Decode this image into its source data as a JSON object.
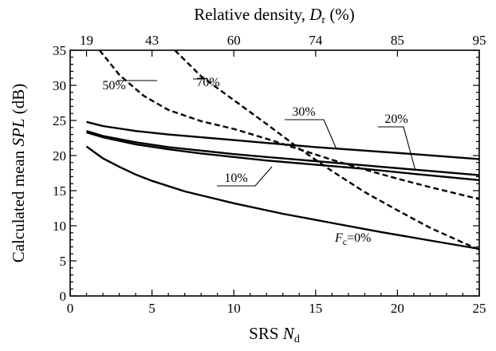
{
  "chart_data": {
    "type": "line",
    "xlabel": {
      "main": "SRS ",
      "italic": "N",
      "sub": "d"
    },
    "ylabel": {
      "main": "Calculated mean ",
      "italic": "SPL",
      "tail": " (dB)"
    },
    "top_axis_label": {
      "main": "Relative density, ",
      "italic": "D",
      "sub": "r",
      "tail": " (%)"
    },
    "xlim": [
      0,
      25
    ],
    "ylim": [
      0,
      35
    ],
    "x_ticks": [
      "0",
      "5",
      "10",
      "15",
      "20",
      "25"
    ],
    "y_ticks": [
      "0",
      "5",
      "10",
      "15",
      "20",
      "25",
      "30",
      "35"
    ],
    "top_ticks": [
      {
        "x": 1,
        "label": "19"
      },
      {
        "x": 5,
        "label": "43"
      },
      {
        "x": 10,
        "label": "60"
      },
      {
        "x": 15,
        "label": "74"
      },
      {
        "x": 20,
        "label": "85"
      },
      {
        "x": 25,
        "label": "95"
      }
    ],
    "grid": false,
    "series": [
      {
        "name": "Fc=0%",
        "style": "solid",
        "x": [
          1,
          2,
          3,
          4,
          5,
          7,
          10,
          13,
          16,
          19,
          22,
          25
        ],
        "y": [
          21.3,
          19.6,
          18.4,
          17.3,
          16.4,
          14.9,
          13.2,
          11.7,
          10.4,
          9.1,
          7.9,
          6.7
        ]
      },
      {
        "name": "10%",
        "style": "solid",
        "x": [
          1,
          2,
          4,
          6,
          8,
          10,
          12,
          15,
          18,
          21,
          25
        ],
        "y": [
          23.3,
          22.6,
          21.6,
          20.9,
          20.3,
          19.8,
          19.3,
          18.7,
          18.1,
          17.4,
          16.5
        ]
      },
      {
        "name": "20%",
        "style": "solid",
        "x": [
          1,
          2,
          4,
          6,
          8,
          10,
          12,
          15,
          18,
          21,
          25
        ],
        "y": [
          23.5,
          22.8,
          21.9,
          21.2,
          20.7,
          20.2,
          19.8,
          19.2,
          18.6,
          18.0,
          17.2
        ]
      },
      {
        "name": "30%",
        "style": "solid",
        "x": [
          1,
          2,
          4,
          6,
          8,
          10,
          12,
          15,
          18,
          21,
          25
        ],
        "y": [
          24.8,
          24.2,
          23.5,
          23.0,
          22.6,
          22.2,
          21.8,
          21.2,
          20.7,
          20.2,
          19.5
        ]
      },
      {
        "name": "50%",
        "style": "dashed",
        "x": [
          1.8,
          3,
          4.5,
          6,
          8,
          10,
          12,
          14,
          16,
          18,
          20,
          22,
          25
        ],
        "y": [
          35,
          31.5,
          28.5,
          26.5,
          24.9,
          23.8,
          22.4,
          20.9,
          19.4,
          18.0,
          16.7,
          15.5,
          13.8
        ]
      },
      {
        "name": "70%",
        "style": "dashed",
        "x": [
          6.4,
          8,
          10,
          12,
          14,
          16,
          18,
          20,
          22,
          24,
          25
        ],
        "y": [
          35,
          31.3,
          27.9,
          24.5,
          21.0,
          17.8,
          14.8,
          12.2,
          9.7,
          7.6,
          6.6
        ]
      }
    ],
    "annotations": [
      {
        "text": "50%",
        "series": "50%"
      },
      {
        "text": "70%",
        "series": "70%"
      },
      {
        "text": "30%",
        "series": "30%"
      },
      {
        "text": "20%",
        "series": "20%"
      },
      {
        "text": "10%",
        "series": "10%"
      },
      {
        "text": {
          "italic": "F",
          "sub": "c",
          "tail": "=0%"
        },
        "series": "Fc=0%"
      }
    ]
  }
}
